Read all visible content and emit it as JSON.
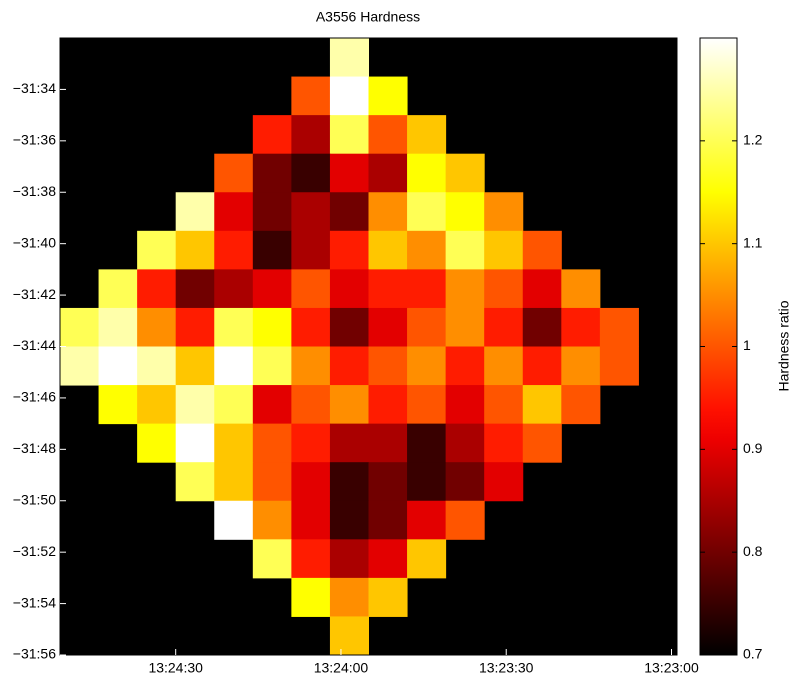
{
  "chart_data": {
    "type": "heatmap",
    "title": "A3556 Hardness",
    "colormap": "hot",
    "colorbar_label": "Hardness ratio",
    "clim": [
      0.7,
      1.3
    ],
    "cticks": [
      0.7,
      0.8,
      0.9,
      1,
      1.1,
      1.2
    ],
    "xlim": [
      1491,
      1379
    ],
    "xticks": [
      {
        "value": 1470,
        "label": "13:24:30"
      },
      {
        "value": 1440,
        "label": "13:24:00"
      },
      {
        "value": 1410,
        "label": "13:23:30"
      },
      {
        "value": 1380,
        "label": "13:23:00"
      }
    ],
    "ylim": [
      -1916,
      -1892
    ],
    "yticks": [
      {
        "value": -1894,
        "label": "−31:34"
      },
      {
        "value": -1896,
        "label": "−31:36"
      },
      {
        "value": -1898,
        "label": "−31:38"
      },
      {
        "value": -1900,
        "label": "−31:40"
      },
      {
        "value": -1902,
        "label": "−31:42"
      },
      {
        "value": -1904,
        "label": "−31:44"
      },
      {
        "value": -1906,
        "label": "−31:46"
      },
      {
        "value": -1908,
        "label": "−31:48"
      },
      {
        "value": -1910,
        "label": "−31:50"
      },
      {
        "value": -1912,
        "label": "−31:52"
      },
      {
        "value": -1914,
        "label": "−31:54"
      },
      {
        "value": -1916,
        "label": "−31:56"
      }
    ],
    "z": [
      [
        null,
        null,
        null,
        null,
        null,
        null,
        null,
        1.25,
        null,
        null,
        null,
        null,
        null,
        null,
        null,
        null
      ],
      [
        null,
        null,
        null,
        null,
        null,
        null,
        1.0,
        1.3,
        1.15,
        null,
        null,
        null,
        null,
        null,
        null,
        null
      ],
      [
        null,
        null,
        null,
        null,
        null,
        0.95,
        0.85,
        1.2,
        1.0,
        1.1,
        null,
        null,
        null,
        null,
        null,
        null
      ],
      [
        null,
        null,
        null,
        null,
        1.0,
        0.8,
        0.75,
        0.9,
        0.85,
        1.15,
        1.1,
        null,
        null,
        null,
        null,
        null
      ],
      [
        null,
        null,
        null,
        1.25,
        0.9,
        0.8,
        0.85,
        0.8,
        1.05,
        1.2,
        1.15,
        1.05,
        null,
        null,
        null,
        null
      ],
      [
        null,
        null,
        1.2,
        1.1,
        0.95,
        0.75,
        0.85,
        0.95,
        1.1,
        1.05,
        1.2,
        1.1,
        1.0,
        null,
        null,
        null
      ],
      [
        null,
        1.2,
        0.95,
        0.8,
        0.85,
        0.9,
        1.0,
        0.9,
        0.95,
        0.95,
        1.05,
        1.0,
        0.9,
        1.05,
        null,
        null
      ],
      [
        1.2,
        1.25,
        1.05,
        0.95,
        1.2,
        1.15,
        0.95,
        0.8,
        0.9,
        1.0,
        1.05,
        0.95,
        0.8,
        0.95,
        1.0,
        null
      ],
      [
        1.25,
        1.3,
        1.25,
        1.1,
        1.3,
        1.2,
        1.05,
        0.95,
        1.0,
        1.05,
        0.95,
        1.05,
        0.95,
        1.05,
        1.0,
        null
      ],
      [
        null,
        1.15,
        1.1,
        1.25,
        1.2,
        0.9,
        1.0,
        1.05,
        0.95,
        1.0,
        0.9,
        1.0,
        1.1,
        1.0,
        null,
        null
      ],
      [
        null,
        null,
        1.15,
        1.3,
        1.1,
        1.0,
        0.95,
        0.85,
        0.85,
        0.75,
        0.85,
        0.95,
        1.0,
        null,
        null,
        null
      ],
      [
        null,
        null,
        null,
        1.2,
        1.1,
        1.0,
        0.9,
        0.75,
        0.8,
        0.75,
        0.8,
        0.9,
        null,
        null,
        null,
        null
      ],
      [
        null,
        null,
        null,
        null,
        1.3,
        1.05,
        0.9,
        0.75,
        0.8,
        0.9,
        1.0,
        null,
        null,
        null,
        null,
        null
      ],
      [
        null,
        null,
        null,
        null,
        null,
        1.2,
        0.95,
        0.85,
        0.9,
        1.1,
        null,
        null,
        null,
        null,
        null,
        null
      ],
      [
        null,
        null,
        null,
        null,
        null,
        null,
        1.15,
        1.05,
        1.1,
        null,
        null,
        null,
        null,
        null,
        null,
        null
      ],
      [
        null,
        null,
        null,
        null,
        null,
        null,
        null,
        1.1,
        null,
        null,
        null,
        null,
        null,
        null,
        null,
        null
      ]
    ]
  }
}
